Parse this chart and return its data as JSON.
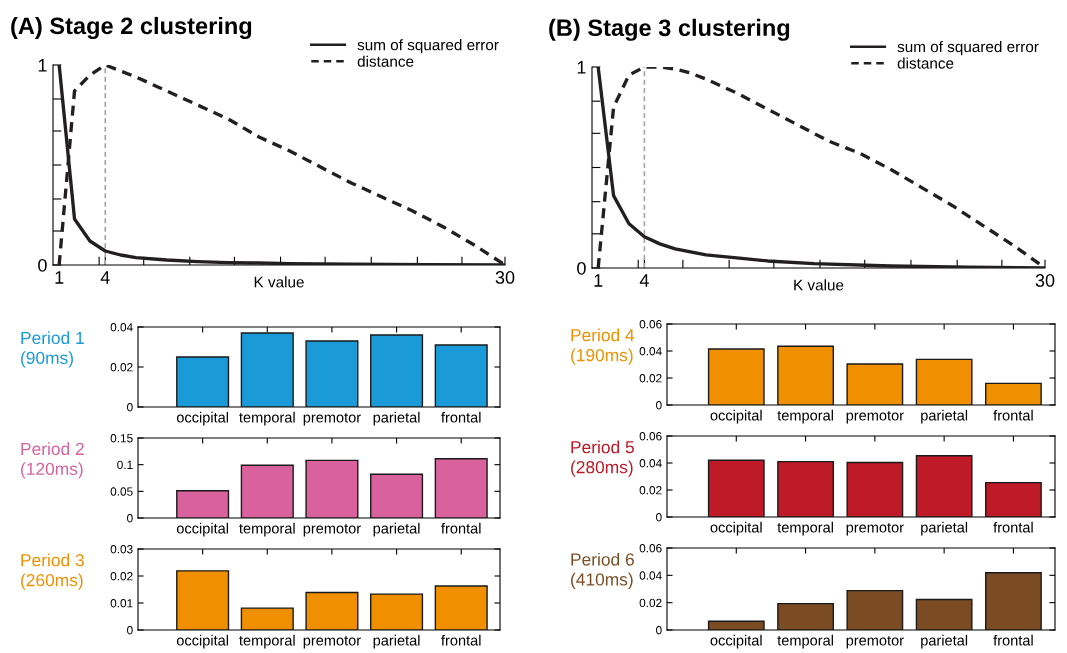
{
  "chart_data": [
    {
      "type": "line",
      "title": "(A) Stage 2 clustering",
      "xlabel": "K value",
      "legend": "top right",
      "xlim": [
        0.6,
        30
      ],
      "ylim": [
        0,
        1
      ],
      "xticks": [
        1,
        {
          "value": 3.6,
          "label": null
        },
        4,
        {
          "value": 6.5,
          "label": null
        },
        {
          "value": 9.5,
          "label": null
        },
        {
          "value": 12.4,
          "label": null
        },
        {
          "value": 15.4,
          "label": null
        },
        {
          "value": 18.3,
          "label": null
        },
        {
          "value": 21.3,
          "label": null
        },
        {
          "value": 24.3,
          "label": null
        },
        {
          "value": 27.2,
          "label": null
        },
        30
      ],
      "yticks": [
        0,
        {
          "value": 0.17,
          "label": null
        },
        {
          "value": 0.33,
          "label": null
        },
        {
          "value": 0.5,
          "label": null
        },
        {
          "value": 0.67,
          "label": null
        },
        {
          "value": 0.83,
          "label": null
        },
        1
      ],
      "ref_lines": [
        {
          "axis": "x",
          "value": 4,
          "color": "#a6a6a6",
          "line_style": "dashed"
        }
      ],
      "series": [
        {
          "name": "sum of squared error",
          "color": "#231f20",
          "line_style": "solid",
          "x": [
            1,
            2,
            3,
            4,
            5,
            6,
            8,
            10,
            12,
            14,
            16,
            20,
            25,
            30
          ],
          "values": [
            1,
            0.23,
            0.12,
            0.07,
            0.05,
            0.037,
            0.025,
            0.017,
            0.012,
            0.01,
            0.007,
            0.004,
            0.002,
            0
          ]
        },
        {
          "name": "distance",
          "color": "#231f20",
          "line_style": "dashed",
          "x": [
            1,
            2,
            3,
            4,
            5,
            6,
            8,
            10,
            12,
            14,
            16,
            18,
            20,
            22,
            24,
            26,
            28,
            30
          ],
          "values": [
            0,
            0.87,
            0.95,
            1,
            0.97,
            0.94,
            0.87,
            0.8,
            0.73,
            0.64,
            0.57,
            0.49,
            0.41,
            0.34,
            0.27,
            0.19,
            0.1,
            0
          ]
        }
      ]
    },
    {
      "type": "line",
      "title": "(B) Stage 3 clustering",
      "xlabel": "K value",
      "legend": "top right",
      "xlim": [
        0.6,
        30
      ],
      "ylim": [
        0,
        1
      ],
      "xticks": [
        1,
        {
          "value": 3.6,
          "label": null
        },
        4,
        {
          "value": 6.5,
          "label": null
        },
        {
          "value": 9.5,
          "label": null
        },
        {
          "value": 12.4,
          "label": null
        },
        {
          "value": 15.4,
          "label": null
        },
        {
          "value": 18.3,
          "label": null
        },
        {
          "value": 21.3,
          "label": null
        },
        {
          "value": 24.3,
          "label": null
        },
        {
          "value": 27.2,
          "label": null
        },
        30
      ],
      "yticks": [
        0,
        {
          "value": 0.17,
          "label": null
        },
        {
          "value": 0.33,
          "label": null
        },
        {
          "value": 0.5,
          "label": null
        },
        {
          "value": 0.67,
          "label": null
        },
        {
          "value": 0.83,
          "label": null
        },
        1
      ],
      "ref_lines": [
        {
          "axis": "x",
          "value": 4,
          "color": "#a6a6a6",
          "line_style": "dashed"
        }
      ],
      "series": [
        {
          "name": "sum of squared error",
          "color": "#231f20",
          "line_style": "solid",
          "x": [
            1,
            2,
            3,
            4,
            5,
            6,
            8,
            10,
            12,
            15,
            20,
            25,
            30
          ],
          "values": [
            1,
            0.36,
            0.22,
            0.155,
            0.12,
            0.095,
            0.065,
            0.05,
            0.035,
            0.022,
            0.01,
            0.004,
            0
          ]
        },
        {
          "name": "distance",
          "color": "#231f20",
          "line_style": "dashed",
          "x": [
            1,
            2,
            3,
            4,
            5,
            6,
            7,
            8,
            10,
            12,
            14,
            16,
            18,
            20,
            22,
            24,
            26,
            28,
            30
          ],
          "values": [
            0,
            0.8,
            0.96,
            1,
            1,
            0.99,
            0.97,
            0.94,
            0.87,
            0.79,
            0.71,
            0.63,
            0.57,
            0.49,
            0.4,
            0.31,
            0.21,
            0.11,
            0
          ]
        }
      ]
    },
    {
      "type": "bar",
      "ylabel": "Period 1\n(90ms)",
      "categories": [
        "occipital",
        "temporal",
        "premotor",
        "parietal",
        "frontal"
      ],
      "values": [
        0.025,
        0.037,
        0.033,
        0.036,
        0.031
      ],
      "color": "#1a9ad6",
      "ylim": [
        0,
        0.04
      ],
      "yticks": [
        0,
        0.02,
        0.04
      ]
    },
    {
      "type": "bar",
      "ylabel": "Period 4\n(190ms)",
      "categories": [
        "occipital",
        "temporal",
        "premotor",
        "parietal",
        "frontal"
      ],
      "values": [
        0.0415,
        0.0435,
        0.0304,
        0.0338,
        0.016
      ],
      "color": "#f09000",
      "ylim": [
        0,
        0.06
      ],
      "yticks": [
        0,
        0.02,
        0.04,
        0.06
      ]
    },
    {
      "type": "bar",
      "ylabel": "Period 2\n(120ms)",
      "categories": [
        "occipital",
        "temporal",
        "premotor",
        "parietal",
        "frontal"
      ],
      "values": [
        0.051,
        0.099,
        0.108,
        0.082,
        0.111
      ],
      "color": "#d9629e",
      "ylim": [
        0,
        0.15
      ],
      "yticks": [
        0,
        0.05,
        0.1,
        0.15
      ]
    },
    {
      "type": "bar",
      "ylabel": "Period 5\n(280ms)",
      "categories": [
        "occipital",
        "temporal",
        "premotor",
        "parietal",
        "frontal"
      ],
      "values": [
        0.042,
        0.041,
        0.0404,
        0.0454,
        0.0255
      ],
      "color": "#be1a27",
      "ylim": [
        0,
        0.06
      ],
      "yticks": [
        0,
        0.02,
        0.04,
        0.06
      ]
    },
    {
      "type": "bar",
      "ylabel": "Period 3\n(260ms)",
      "categories": [
        "occipital",
        "temporal",
        "premotor",
        "parietal",
        "frontal"
      ],
      "values": [
        0.0219,
        0.0081,
        0.0139,
        0.0133,
        0.0163
      ],
      "color": "#f09000",
      "ylim": [
        0,
        0.03
      ],
      "yticks": [
        0,
        0.01,
        0.02,
        0.03
      ]
    },
    {
      "type": "bar",
      "ylabel": "Period 6\n(410ms)",
      "categories": [
        "occipital",
        "temporal",
        "premotor",
        "parietal",
        "frontal"
      ],
      "values": [
        0.0064,
        0.0193,
        0.0288,
        0.0223,
        0.0419
      ],
      "color": "#7b4c24",
      "ylim": [
        0,
        0.06
      ],
      "yticks": [
        0,
        0.02,
        0.04,
        0.06
      ]
    }
  ]
}
